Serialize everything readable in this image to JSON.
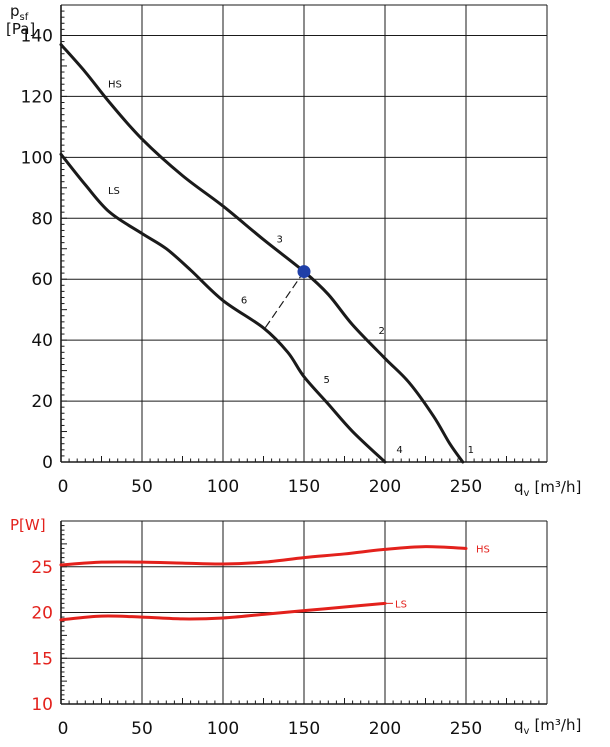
{
  "chart_data": [
    {
      "type": "line",
      "ylabel": {
        "main": "p",
        "sub": "sf",
        "unit": "[Pa]"
      },
      "xlabel": {
        "main": "q",
        "sub": "v",
        "unit": "[m³/h]"
      },
      "xlim": [
        0,
        300
      ],
      "ylim": [
        0,
        150
      ],
      "x_ticks": [
        0,
        50,
        100,
        150,
        200,
        250
      ],
      "y_ticks": [
        0,
        20,
        40,
        60,
        80,
        100,
        120,
        140
      ],
      "grid": true,
      "series": [
        {
          "name": "HS",
          "points": [
            [
              0,
              137
            ],
            [
              15,
              128
            ],
            [
              30,
              118
            ],
            [
              50,
              106
            ],
            [
              75,
              94
            ],
            [
              100,
              84
            ],
            [
              125,
              73
            ],
            [
              150,
              62.5
            ],
            [
              165,
              55
            ],
            [
              180,
              45
            ],
            [
              200,
              34
            ],
            [
              215,
              26
            ],
            [
              230,
              15
            ],
            [
              240,
              6
            ],
            [
              248,
              0
            ]
          ]
        },
        {
          "name": "LS",
          "points": [
            [
              0,
              101
            ],
            [
              15,
              91
            ],
            [
              30,
              82
            ],
            [
              50,
              75
            ],
            [
              65,
              70
            ],
            [
              80,
              63
            ],
            [
              100,
              53
            ],
            [
              125,
              44
            ],
            [
              140,
              36
            ],
            [
              150,
              28
            ],
            [
              165,
              19
            ],
            [
              180,
              10
            ],
            [
              200,
              0
            ]
          ]
        }
      ],
      "marker": {
        "x": 150,
        "y": 62.5
      },
      "dashed_segment": [
        [
          150,
          62.5
        ],
        [
          126,
          44
        ]
      ],
      "annotations": [
        {
          "text": "HS",
          "x": 29,
          "y": 123
        },
        {
          "text": "LS",
          "x": 29,
          "y": 88
        },
        {
          "text": "1",
          "x": 251,
          "y": 3
        },
        {
          "text": "2",
          "x": 196,
          "y": 42
        },
        {
          "text": "3",
          "x": 133,
          "y": 72
        },
        {
          "text": "4",
          "x": 207,
          "y": 3
        },
        {
          "text": "5",
          "x": 162,
          "y": 26
        },
        {
          "text": "6",
          "x": 111,
          "y": 52
        }
      ]
    },
    {
      "type": "line",
      "ylabel": {
        "text": "P[W]"
      },
      "xlabel": {
        "main": "q",
        "sub": "v",
        "unit": "[m³/h]"
      },
      "xlim": [
        0,
        300
      ],
      "ylim": [
        10,
        30
      ],
      "x_ticks": [
        0,
        50,
        100,
        150,
        200,
        250
      ],
      "y_ticks": [
        10,
        15,
        20,
        25
      ],
      "grid": true,
      "series": [
        {
          "name": "HS",
          "points": [
            [
              0,
              25.2
            ],
            [
              25,
              25.5
            ],
            [
              50,
              25.5
            ],
            [
              75,
              25.4
            ],
            [
              100,
              25.3
            ],
            [
              125,
              25.5
            ],
            [
              150,
              26
            ],
            [
              175,
              26.4
            ],
            [
              200,
              26.9
            ],
            [
              225,
              27.2
            ],
            [
              250,
              27
            ]
          ]
        },
        {
          "name": "LS",
          "points": [
            [
              0,
              19.2
            ],
            [
              25,
              19.6
            ],
            [
              50,
              19.5
            ],
            [
              75,
              19.3
            ],
            [
              100,
              19.4
            ],
            [
              125,
              19.8
            ],
            [
              150,
              20.2
            ],
            [
              175,
              20.6
            ],
            [
              200,
              21
            ]
          ]
        }
      ]
    }
  ],
  "colors": {
    "line": "#1a1a1a",
    "power": "#e3211c",
    "marker": "#1f3fa8",
    "grid": "#1a1a1a"
  }
}
